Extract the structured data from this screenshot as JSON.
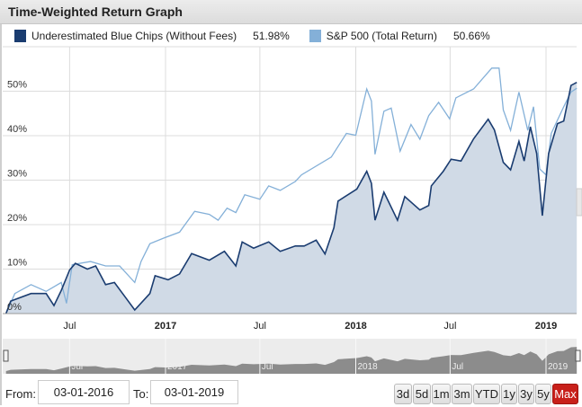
{
  "title": "Time-Weighted Return Graph",
  "legend": [
    {
      "name": "Underestimated Blue Chips (Without Fees)",
      "value": "51.98%",
      "color": "#1a3c70"
    },
    {
      "name": "S&P 500 (Total Return)",
      "value": "50.66%",
      "color": "#84b0d8"
    }
  ],
  "controls": {
    "from_label": "From:",
    "from_value": "03-01-2016",
    "to_label": "To:",
    "to_value": "03-01-2019",
    "ranges": [
      "3d",
      "5d",
      "1m",
      "3m",
      "YTD",
      "1y",
      "3y",
      "5y",
      "Max"
    ],
    "active_range": "Max"
  },
  "navigator": {
    "tick_labels": [
      "Jul",
      "2017",
      "Jul",
      "2018",
      "Jul",
      "2019"
    ]
  },
  "chart_data": {
    "type": "line",
    "title": "Time-Weighted Return Graph",
    "xlabel": "",
    "ylabel": "",
    "x_range": [
      "2016-03-01",
      "2019-03-01"
    ],
    "ylim": [
      0,
      60
    ],
    "y_ticks": [
      0,
      10,
      20,
      30,
      40,
      50
    ],
    "y_tick_labels": [
      "0%",
      "10%",
      "20%",
      "30%",
      "40%",
      "50%"
    ],
    "x_ticks": [
      "2016-07-01",
      "2017-01-01",
      "2017-07-01",
      "2018-01-01",
      "2018-07-01",
      "2019-01-01"
    ],
    "x_tick_labels": [
      "Jul",
      "2017",
      "Jul",
      "2018",
      "Jul",
      "2019"
    ],
    "x_tick_bold": [
      false,
      true,
      false,
      true,
      false,
      true
    ],
    "grid": true,
    "legend_position": "top-left",
    "series": [
      {
        "name": "Underestimated Blue Chips (Without Fees)",
        "color": "#1a3c70",
        "fill": "#d0dae6",
        "points": [
          [
            "2016-03-01",
            0
          ],
          [
            "2016-03-10",
            2.8
          ],
          [
            "2016-04-18",
            4.5
          ],
          [
            "2016-05-17",
            4.5
          ],
          [
            "2016-06-01",
            1.8
          ],
          [
            "2016-06-15",
            5.2
          ],
          [
            "2016-07-01",
            9.8
          ],
          [
            "2016-07-12",
            11.3
          ],
          [
            "2016-08-04",
            10
          ],
          [
            "2016-08-20",
            10.7
          ],
          [
            "2016-09-08",
            6.5
          ],
          [
            "2016-09-25",
            7
          ],
          [
            "2016-10-17",
            3.5
          ],
          [
            "2016-11-03",
            0.8
          ],
          [
            "2016-12-02",
            4.5
          ],
          [
            "2016-12-12",
            8.5
          ],
          [
            "2017-01-06",
            7.6
          ],
          [
            "2017-01-28",
            8.9
          ],
          [
            "2017-02-20",
            13.5
          ],
          [
            "2017-03-26",
            12
          ],
          [
            "2017-04-24",
            14
          ],
          [
            "2017-05-16",
            10.7
          ],
          [
            "2017-05-28",
            16.1
          ],
          [
            "2017-06-19",
            14.7
          ],
          [
            "2017-07-18",
            16.1
          ],
          [
            "2017-08-09",
            14
          ],
          [
            "2017-09-07",
            15.2
          ],
          [
            "2017-09-24",
            15.2
          ],
          [
            "2017-10-17",
            16.5
          ],
          [
            "2017-11-03",
            13.4
          ],
          [
            "2017-11-20",
            19.3
          ],
          [
            "2017-11-28",
            25.3
          ],
          [
            "2018-01-03",
            28
          ],
          [
            "2018-01-22",
            32
          ],
          [
            "2018-01-31",
            29.3
          ],
          [
            "2018-02-07",
            21
          ],
          [
            "2018-02-24",
            27.3
          ],
          [
            "2018-03-22",
            21
          ],
          [
            "2018-04-05",
            26.3
          ],
          [
            "2018-05-04",
            23.3
          ],
          [
            "2018-05-21",
            24.3
          ],
          [
            "2018-05-26",
            28.7
          ],
          [
            "2018-06-18",
            32
          ],
          [
            "2018-07-03",
            34.7
          ],
          [
            "2018-07-22",
            34.3
          ],
          [
            "2018-08-15",
            39.3
          ],
          [
            "2018-09-12",
            43.7
          ],
          [
            "2018-09-24",
            41.3
          ],
          [
            "2018-10-11",
            34
          ],
          [
            "2018-10-25",
            32.3
          ],
          [
            "2018-11-10",
            38.7
          ],
          [
            "2018-11-20",
            34.3
          ],
          [
            "2018-12-02",
            42
          ],
          [
            "2018-12-14",
            36
          ],
          [
            "2018-12-25",
            22
          ],
          [
            "2019-01-06",
            36
          ],
          [
            "2019-01-23",
            42.7
          ],
          [
            "2019-02-04",
            43.3
          ],
          [
            "2019-02-18",
            51.3
          ],
          [
            "2019-03-01",
            51.98
          ]
        ]
      },
      {
        "name": "S&P 500 (Total Return)",
        "color": "#84b0d8",
        "points": [
          [
            "2016-03-01",
            0
          ],
          [
            "2016-03-18",
            4.5
          ],
          [
            "2016-04-18",
            6.5
          ],
          [
            "2016-05-17",
            5
          ],
          [
            "2016-06-15",
            7
          ],
          [
            "2016-06-25",
            2.3
          ],
          [
            "2016-07-06",
            11
          ],
          [
            "2016-08-10",
            11.7
          ],
          [
            "2016-09-08",
            10.7
          ],
          [
            "2016-10-05",
            10.7
          ],
          [
            "2016-11-03",
            7
          ],
          [
            "2016-11-15",
            11.7
          ],
          [
            "2016-12-02",
            15.7
          ],
          [
            "2016-12-29",
            17
          ],
          [
            "2017-01-28",
            18.3
          ],
          [
            "2017-02-26",
            23
          ],
          [
            "2017-03-26",
            22.3
          ],
          [
            "2017-04-12",
            21
          ],
          [
            "2017-04-29",
            23.7
          ],
          [
            "2017-05-16",
            22.7
          ],
          [
            "2017-06-02",
            26.7
          ],
          [
            "2017-07-01",
            25.7
          ],
          [
            "2017-07-18",
            28.7
          ],
          [
            "2017-08-09",
            27.7
          ],
          [
            "2017-09-07",
            29.7
          ],
          [
            "2017-09-19",
            31.2
          ],
          [
            "2017-11-15",
            35.2
          ],
          [
            "2017-12-14",
            40.5
          ],
          [
            "2018-01-01",
            40.1
          ],
          [
            "2018-01-22",
            50.5
          ],
          [
            "2018-01-31",
            47.8
          ],
          [
            "2018-02-07",
            35.8
          ],
          [
            "2018-02-24",
            45.5
          ],
          [
            "2018-03-10",
            46.2
          ],
          [
            "2018-03-27",
            36.5
          ],
          [
            "2018-04-17",
            42.5
          ],
          [
            "2018-05-04",
            39.2
          ],
          [
            "2018-05-21",
            44.5
          ],
          [
            "2018-06-09",
            47.5
          ],
          [
            "2018-06-30",
            43.8
          ],
          [
            "2018-07-12",
            48.5
          ],
          [
            "2018-08-15",
            50.5
          ],
          [
            "2018-09-19",
            55.2
          ],
          [
            "2018-10-03",
            55.2
          ],
          [
            "2018-10-11",
            45.8
          ],
          [
            "2018-10-25",
            41.2
          ],
          [
            "2018-11-10",
            49.8
          ],
          [
            "2018-11-27",
            41.2
          ],
          [
            "2018-12-08",
            46.5
          ],
          [
            "2018-12-20",
            32.5
          ],
          [
            "2019-01-01",
            31.2
          ],
          [
            "2019-01-11",
            40.5
          ],
          [
            "2019-02-04",
            46.5
          ],
          [
            "2019-02-18",
            49.8
          ],
          [
            "2019-03-01",
            50.66
          ]
        ]
      }
    ]
  }
}
